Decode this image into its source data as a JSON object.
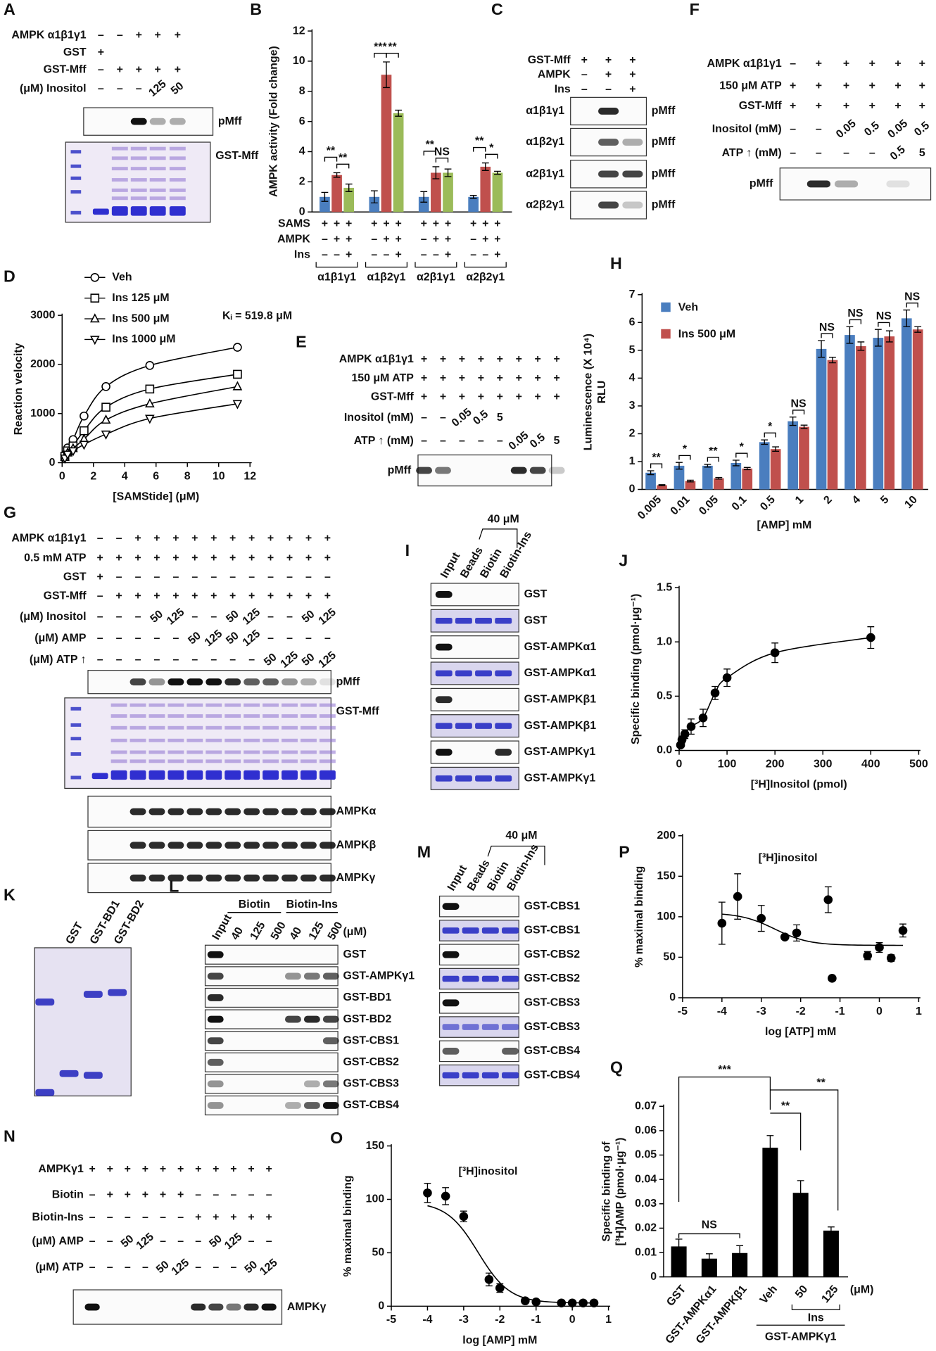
{
  "chart_data": [
    {
      "label": "B",
      "type": "bar",
      "y_label": "AMPK activity (Fold change)",
      "categories": [
        "α1β1γ1",
        "α1β2γ1",
        "α2β1γ1",
        "α2β2γ1"
      ],
      "series": [
        {
          "color": "#4a7ebf",
          "values": [
            1,
            1,
            1,
            1
          ],
          "errors": [
            0.3,
            0.4,
            0.35,
            0.1
          ]
        },
        {
          "color": "#c0504d",
          "values": [
            2.45,
            9.1,
            2.6,
            3.0
          ],
          "errors": [
            0.15,
            0.85,
            0.4,
            0.25
          ]
        },
        {
          "color": "#9bbb59",
          "values": [
            1.6,
            6.55,
            2.6,
            2.6
          ],
          "errors": [
            0.25,
            0.2,
            0.25,
            0.1
          ]
        }
      ],
      "ylim": [
        0,
        12
      ],
      "yticks": [
        0,
        2,
        4,
        6,
        8,
        10,
        12
      ],
      "significance": [
        [
          "**",
          "**"
        ],
        [
          "***",
          "**"
        ],
        [
          "**",
          "NS"
        ],
        [
          "**",
          "*"
        ]
      ],
      "conditions": [
        {
          "label": "SAMS",
          "cells": [
            "+",
            "+",
            "+"
          ]
        },
        {
          "label": "AMPK",
          "cells": [
            "–",
            "+",
            "+"
          ]
        },
        {
          "label": "Ins",
          "cells": [
            "–",
            "–",
            "+"
          ]
        }
      ]
    },
    {
      "label": "D",
      "type": "scatter",
      "y_label": "Reaction velocity",
      "x_label": "[SAMStide] (μM)",
      "annotation": "Kᵢ = 519.8 μM",
      "curve": "smooth",
      "color": "#000000",
      "x": [
        0.175,
        0.35,
        0.7,
        1.4,
        2.8,
        5.6,
        11.2
      ],
      "series": [
        {
          "name": "Veh",
          "marker": "circle",
          "values": [
            160,
            300,
            470,
            950,
            1550,
            1980,
            2350
          ]
        },
        {
          "name": "Ins 125 μM",
          "marker": "square",
          "values": [
            130,
            240,
            340,
            650,
            1130,
            1500,
            1800
          ]
        },
        {
          "name": "Ins 500 μM",
          "marker": "triangle",
          "values": [
            110,
            200,
            290,
            480,
            870,
            1200,
            1550
          ]
        },
        {
          "name": "Ins 1000 μM",
          "marker": "triangle-down",
          "values": [
            90,
            170,
            240,
            370,
            580,
            900,
            1200
          ]
        }
      ],
      "xlim": [
        0,
        12
      ],
      "xticks": [
        0,
        2,
        4,
        6,
        8,
        10,
        12
      ],
      "ylim": [
        0,
        3000
      ],
      "yticks": [
        0,
        1000,
        2000,
        3000
      ]
    },
    {
      "label": "H",
      "type": "bar",
      "y_label": [
        "Luminescence (X 10⁴)",
        "RLU"
      ],
      "x_label": "[AMP] mM",
      "legend": "upper left",
      "categories": [
        "0.005",
        "0.01",
        "0.05",
        "0.1",
        "0.5",
        "1",
        "2",
        "4",
        "5",
        "10"
      ],
      "series": [
        {
          "name": "Veh",
          "color": "#4a7ebf",
          "values": [
            0.6,
            0.85,
            0.85,
            0.95,
            1.7,
            2.45,
            5.05,
            5.55,
            5.45,
            6.15
          ],
          "errors": [
            0.07,
            0.12,
            0.05,
            0.1,
            0.08,
            0.15,
            0.3,
            0.3,
            0.3,
            0.3
          ]
        },
        {
          "name": "Ins 500 μM",
          "color": "#c0504d",
          "values": [
            0.15,
            0.3,
            0.4,
            0.75,
            1.45,
            2.25,
            4.65,
            5.15,
            5.5,
            5.75
          ],
          "errors": [
            0.02,
            0.03,
            0.03,
            0.04,
            0.08,
            0.06,
            0.1,
            0.15,
            0.2,
            0.1
          ]
        }
      ],
      "ylim": [
        0,
        7
      ],
      "yticks": [
        0,
        1,
        2,
        3,
        4,
        5,
        6,
        7
      ],
      "significance": [
        "**",
        "*",
        "**",
        "*",
        "*",
        "NS",
        "NS",
        "NS",
        "NS",
        "NS"
      ]
    },
    {
      "label": "J",
      "type": "scatter",
      "y_label": "Specific binding (pmol·μg⁻¹)",
      "x_label": "[³H]Inositol (pmol)",
      "curve": "smooth",
      "color": "#000000",
      "x": [
        3,
        6,
        12,
        25,
        50,
        75,
        100,
        200,
        400
      ],
      "series": [
        {
          "values": [
            0.05,
            0.1,
            0.15,
            0.22,
            0.3,
            0.53,
            0.67,
            0.9,
            1.04
          ],
          "errors": [
            0.02,
            0.03,
            0.04,
            0.07,
            0.08,
            0.06,
            0.08,
            0.09,
            0.1
          ]
        }
      ],
      "xlim": [
        0,
        500
      ],
      "xticks": [
        0,
        100,
        200,
        300,
        400,
        500
      ],
      "ylim": [
        0,
        1.5
      ],
      "yticks": [
        {
          "value": 0,
          "label": "0.0"
        },
        {
          "value": 0.5,
          "label": "0.5"
        },
        {
          "value": 1,
          "label": "1.0"
        },
        {
          "value": 1.5,
          "label": "1.5"
        }
      ]
    },
    {
      "label": "O",
      "type": "scatter",
      "y_label": "% maximal binding",
      "x_label": "log [AMP] mM",
      "annotation": "[³H]inositol",
      "curve": "sigmoid",
      "color": "#000000",
      "x": [
        -4,
        -3.5,
        -3,
        -2.3,
        -2,
        -1.3,
        -1,
        -0.3,
        0,
        0.3,
        0.6
      ],
      "series": [
        {
          "values": [
            106,
            103,
            84,
            25,
            17,
            5,
            4,
            3,
            3,
            3,
            3
          ],
          "errors": [
            9,
            8,
            5,
            6,
            4,
            1,
            1,
            1,
            1,
            1,
            1
          ]
        }
      ],
      "xlim": [
        -5,
        1
      ],
      "xticks": [
        -5,
        -4,
        -3,
        -2,
        -1,
        0,
        1
      ],
      "ylim": [
        0,
        150
      ],
      "yticks": [
        0,
        50,
        100,
        150
      ]
    },
    {
      "label": "P",
      "type": "scatter",
      "y_label": "% maximal binding",
      "x_label": "log [ATP] mM",
      "annotation": "[³H]inositol",
      "curve": "sigmoid",
      "color": "#000000",
      "x": [
        -4,
        -3.6,
        -3,
        -2.4,
        -2.1,
        -1.3,
        -1.2,
        -0.3,
        0,
        0.3,
        0.6
      ],
      "series": [
        {
          "values": [
            92,
            125,
            98,
            75,
            80,
            121,
            24,
            52,
            62,
            49,
            83
          ],
          "errors": [
            26,
            28,
            16,
            3,
            10,
            16,
            2,
            5,
            6,
            4,
            8
          ]
        }
      ],
      "xlim": [
        -5,
        1
      ],
      "xticks": [
        -5,
        -4,
        -3,
        -2,
        -1,
        0,
        1
      ],
      "ylim": [
        0,
        200
      ],
      "yticks": [
        0,
        50,
        100,
        150,
        200
      ]
    },
    {
      "label": "Q",
      "type": "bar",
      "y_label": [
        "Specific binding of",
        "[³H]AMP (pmol·μg⁻¹)"
      ],
      "color": "#000000",
      "categories": [
        "GST",
        "GST-AMPKα1",
        "GST-AMPKβ1",
        "Veh",
        "50",
        "125"
      ],
      "values": [
        0.0125,
        0.0075,
        0.0098,
        0.053,
        0.0345,
        0.019
      ],
      "errors": [
        0.003,
        0.002,
        0.003,
        0.005,
        0.005,
        0.0015
      ],
      "ylim": [
        0,
        0.07
      ],
      "yticks": [
        0,
        0.01,
        0.02,
        0.03,
        0.04,
        0.05,
        0.06,
        0.07
      ],
      "significance": [
        "NS",
        "***",
        "**",
        "**"
      ],
      "unit": "(μM)",
      "group_label": "Ins",
      "protein_label": "GST-AMPKγ1"
    }
  ],
  "blots": [
    {
      "label": "A",
      "conditions": [
        {
          "label": "AMPK α1β1γ1",
          "cells": [
            "–",
            "–",
            "+",
            "+",
            "+"
          ]
        },
        {
          "label": "GST",
          "cells": [
            "+",
            null,
            null,
            null,
            null
          ]
        },
        {
          "label": "GST-Mff",
          "cells": [
            "–",
            "+",
            "+",
            "+",
            "+"
          ]
        },
        {
          "label": "(μM) Inositol",
          "cells": [
            "–",
            "–",
            "–",
            "125",
            "50"
          ]
        }
      ],
      "bands": [
        {
          "name": "pMff"
        },
        {
          "name": "GST-Mff"
        }
      ]
    },
    {
      "label": "C",
      "conditions": [
        {
          "label": "GST-Mff",
          "cells": [
            "+",
            "+",
            "+"
          ]
        },
        {
          "label": "AMPK",
          "cells": [
            "–",
            "+",
            "+"
          ]
        },
        {
          "label": "Ins",
          "cells": [
            "–",
            "–",
            "+"
          ]
        }
      ],
      "bands": [
        {
          "left": "α1β1γ1",
          "name": "pMff"
        },
        {
          "left": "α1β2γ1",
          "name": "pMff"
        },
        {
          "left": "α2β1γ1",
          "name": "pMff"
        },
        {
          "left": "α2β2γ1",
          "name": "pMff"
        }
      ]
    },
    {
      "label": "E",
      "conditions": [
        {
          "label": "AMPK α1β1γ1",
          "cells": [
            "+",
            "+",
            "+",
            "+",
            "+",
            "+",
            "+",
            "+"
          ]
        },
        {
          "label": "150 μM ATP",
          "cells": [
            "+",
            "+",
            "+",
            "+",
            "+",
            "+",
            "+",
            "+"
          ]
        },
        {
          "label": "GST-Mff",
          "cells": [
            "+",
            "+",
            "+",
            "+",
            "+",
            "+",
            "+",
            "+"
          ]
        },
        {
          "label": "Inositol (mM)",
          "cells": [
            "–",
            "–",
            "0.05",
            "0.5",
            "5",
            null,
            null,
            null
          ]
        },
        {
          "label": "ATP ↑ (mM)",
          "cells": [
            "–",
            "–",
            "–",
            "–",
            "–",
            "0.05",
            "0.5",
            "5"
          ]
        }
      ],
      "bands": [
        {
          "name": "pMff"
        }
      ]
    },
    {
      "label": "F",
      "conditions": [
        {
          "label": "AMPK α1β1γ1",
          "cells": [
            "–",
            "+",
            "+",
            "+",
            "+",
            "+"
          ]
        },
        {
          "label": "150 μM ATP",
          "cells": [
            "+",
            "+",
            "+",
            "+",
            "+",
            "+"
          ]
        },
        {
          "label": "GST-Mff",
          "cells": [
            "+",
            "+",
            "+",
            "+",
            "+",
            "+"
          ]
        },
        {
          "label": "Inositol (mM)",
          "cells": [
            "–",
            "–",
            "0.05",
            "0.5",
            "0.05",
            "0.5"
          ]
        },
        {
          "label": "ATP ↑ (mM)",
          "cells": [
            "–",
            "–",
            "–",
            "–",
            "0.5",
            "5"
          ]
        }
      ],
      "bands": [
        {
          "name": "pMff"
        }
      ]
    },
    {
      "label": "G",
      "conditions": [
        {
          "label": "AMPK α1β1γ1",
          "cells": [
            "–",
            "–",
            "+",
            "+",
            "+",
            "+",
            "+",
            "+",
            "+",
            "+",
            "+",
            "+",
            "+"
          ]
        },
        {
          "label": "0.5 mM ATP",
          "cells": [
            "+",
            "+",
            "+",
            "+",
            "+",
            "+",
            "+",
            "+",
            "+",
            "+",
            "+",
            "+",
            "+"
          ]
        },
        {
          "label": "GST",
          "cells": [
            "+",
            "–",
            "–",
            "–",
            "–",
            "–",
            "–",
            "–",
            "–",
            "–",
            "–",
            "–",
            "–"
          ]
        },
        {
          "label": "GST-Mff",
          "cells": [
            "–",
            "+",
            "+",
            "+",
            "+",
            "+",
            "+",
            "+",
            "+",
            "+",
            "+",
            "+",
            "+"
          ]
        },
        {
          "label": "(μM) Inositol",
          "cells": [
            "–",
            "–",
            "–",
            "50",
            "125",
            "–",
            "–",
            "50",
            "125",
            "–",
            "–",
            "50",
            "125"
          ]
        },
        {
          "label": "(μM) AMP",
          "cells": [
            "–",
            "–",
            "–",
            "–",
            "–",
            "50",
            "125",
            "50",
            "125",
            "–",
            "–",
            "–",
            "–"
          ]
        },
        {
          "label": "(μM) ATP ↑",
          "cells": [
            "–",
            "–",
            "–",
            "–",
            "–",
            "–",
            "–",
            "–",
            "–",
            "50",
            "125",
            "50",
            "125"
          ]
        }
      ],
      "bands": [
        {
          "name": "pMff"
        },
        {
          "name": "GST-Mff"
        },
        {
          "name": "AMPKα"
        },
        {
          "name": "AMPKβ"
        },
        {
          "name": "AMPKγ"
        }
      ]
    },
    {
      "label": "I",
      "lane_labels": [
        "Input",
        "Beads",
        "Biotin",
        "Biotin-Ins"
      ],
      "bracket": "40 μM",
      "bands": [
        {
          "name": "GST"
        },
        {
          "name": "GST"
        },
        {
          "name": "GST-AMPKα1"
        },
        {
          "name": "GST-AMPKα1"
        },
        {
          "name": "GST-AMPKβ1"
        },
        {
          "name": "GST-AMPKβ1"
        },
        {
          "name": "GST-AMPKγ1"
        },
        {
          "name": "GST-AMPKγ1"
        }
      ]
    },
    {
      "label": "K",
      "lane_labels": [
        "GST",
        "GST-BD1",
        "GST-BD2"
      ]
    },
    {
      "label": "L",
      "lane_labels": [
        "Input",
        "40",
        "125",
        "500",
        "40",
        "125",
        "500"
      ],
      "groups": [
        "Biotin",
        "Biotin-Ins"
      ],
      "unit": "(μM)",
      "bands": [
        {
          "name": "GST"
        },
        {
          "name": "GST-AMPKγ1"
        },
        {
          "name": "GST-BD1"
        },
        {
          "name": "GST-BD2"
        },
        {
          "name": "GST-CBS1"
        },
        {
          "name": "GST-CBS2"
        },
        {
          "name": "GST-CBS3"
        },
        {
          "name": "GST-CBS4"
        }
      ]
    },
    {
      "label": "M",
      "lane_labels": [
        "Input",
        "Beads",
        "Biotin",
        "Biotin-Ins"
      ],
      "bracket": "40 μM",
      "bands": [
        {
          "name": "GST-CBS1"
        },
        {
          "name": "GST-CBS1"
        },
        {
          "name": "GST-CBS2"
        },
        {
          "name": "GST-CBS2"
        },
        {
          "name": "GST-CBS3"
        },
        {
          "name": "GST-CBS3"
        },
        {
          "name": "GST-CBS4"
        },
        {
          "name": "GST-CBS4"
        }
      ]
    },
    {
      "label": "N",
      "conditions": [
        {
          "label": "AMPKγ1",
          "cells": [
            "+",
            "+",
            "+",
            "+",
            "+",
            "+",
            "+",
            "+",
            "+",
            "+",
            "+"
          ]
        },
        {
          "label": "Biotin",
          "cells": [
            "–",
            "+",
            "+",
            "+",
            "+",
            "+",
            "–",
            "–",
            "–",
            "–",
            "–"
          ]
        },
        {
          "label": "Biotin-Ins",
          "cells": [
            "–",
            "–",
            "–",
            "–",
            "–",
            "–",
            "+",
            "+",
            "+",
            "+",
            "+"
          ]
        },
        {
          "label": "(μM) AMP",
          "cells": [
            "–",
            "–",
            "50",
            "125",
            "–",
            "–",
            "–",
            "50",
            "125",
            "–",
            "–"
          ]
        },
        {
          "label": "(μM) ATP",
          "cells": [
            "–",
            "–",
            "–",
            "–",
            "50",
            "125",
            "–",
            "–",
            "–",
            "50",
            "125"
          ]
        }
      ],
      "bands": [
        {
          "name": "AMPKγ"
        }
      ]
    }
  ]
}
